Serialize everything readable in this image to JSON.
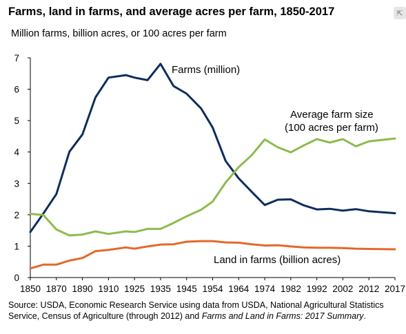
{
  "title": "Farms, land in farms, and average acres per farm, 1850-2017",
  "subtitle": "Million farms, billion acres, or 100 acres per farm",
  "chart_data": {
    "type": "line",
    "ylim": [
      0,
      7
    ],
    "yticks": [
      0,
      1,
      2,
      3,
      4,
      5,
      6,
      7
    ],
    "xlim": [
      1850,
      2017
    ],
    "xtick_labels": [
      "1850",
      "1870",
      "1890",
      "1910",
      "1925",
      "1935",
      "1945",
      "1954",
      "1964",
      "1974",
      "1982",
      "1992",
      "2002",
      "2012",
      "2017"
    ],
    "grid": false,
    "series": [
      {
        "name": "Farms (million)",
        "color": "#0c2d5c",
        "points": [
          [
            1850,
            1.45
          ],
          [
            1860,
            2.04
          ],
          [
            1870,
            2.66
          ],
          [
            1880,
            4.01
          ],
          [
            1890,
            4.56
          ],
          [
            1900,
            5.74
          ],
          [
            1910,
            6.37
          ],
          [
            1920,
            6.45
          ],
          [
            1925,
            6.37
          ],
          [
            1930,
            6.29
          ],
          [
            1935,
            6.81
          ],
          [
            1940,
            6.1
          ],
          [
            1945,
            5.86
          ],
          [
            1950,
            5.39
          ],
          [
            1954,
            4.78
          ],
          [
            1959,
            3.71
          ],
          [
            1964,
            3.16
          ],
          [
            1969,
            2.73
          ],
          [
            1974,
            2.31
          ],
          [
            1978,
            2.48
          ],
          [
            1982,
            2.49
          ],
          [
            1987,
            2.3
          ],
          [
            1992,
            2.17
          ],
          [
            1997,
            2.19
          ],
          [
            2002,
            2.13
          ],
          [
            2007,
            2.18
          ],
          [
            2012,
            2.11
          ],
          [
            2017,
            2.05
          ]
        ]
      },
      {
        "name": "Average farm size (100 acres per farm)",
        "color": "#8dbb4d",
        "points": [
          [
            1850,
            2.03
          ],
          [
            1860,
            1.99
          ],
          [
            1870,
            1.53
          ],
          [
            1880,
            1.34
          ],
          [
            1890,
            1.37
          ],
          [
            1900,
            1.47
          ],
          [
            1910,
            1.39
          ],
          [
            1920,
            1.47
          ],
          [
            1925,
            1.45
          ],
          [
            1930,
            1.55
          ],
          [
            1935,
            1.55
          ],
          [
            1940,
            1.74
          ],
          [
            1945,
            1.95
          ],
          [
            1950,
            2.16
          ],
          [
            1954,
            2.42
          ],
          [
            1959,
            3.03
          ],
          [
            1964,
            3.52
          ],
          [
            1969,
            3.9
          ],
          [
            1974,
            4.4
          ],
          [
            1978,
            4.15
          ],
          [
            1982,
            3.99
          ],
          [
            1987,
            4.21
          ],
          [
            1992,
            4.41
          ],
          [
            1997,
            4.3
          ],
          [
            2002,
            4.41
          ],
          [
            2007,
            4.18
          ],
          [
            2012,
            4.34
          ],
          [
            2017,
            4.43
          ]
        ]
      },
      {
        "name": "Land in farms (billion acres)",
        "color": "#e4682a",
        "points": [
          [
            1850,
            0.29
          ],
          [
            1860,
            0.41
          ],
          [
            1870,
            0.41
          ],
          [
            1880,
            0.54
          ],
          [
            1890,
            0.62
          ],
          [
            1900,
            0.84
          ],
          [
            1910,
            0.88
          ],
          [
            1920,
            0.96
          ],
          [
            1925,
            0.92
          ],
          [
            1930,
            0.99
          ],
          [
            1935,
            1.05
          ],
          [
            1940,
            1.06
          ],
          [
            1945,
            1.14
          ],
          [
            1950,
            1.16
          ],
          [
            1954,
            1.16
          ],
          [
            1959,
            1.12
          ],
          [
            1964,
            1.11
          ],
          [
            1969,
            1.06
          ],
          [
            1974,
            1.02
          ],
          [
            1978,
            1.03
          ],
          [
            1982,
            0.99
          ],
          [
            1987,
            0.96
          ],
          [
            1992,
            0.95
          ],
          [
            1997,
            0.95
          ],
          [
            2002,
            0.94
          ],
          [
            2007,
            0.92
          ],
          [
            2012,
            0.91
          ],
          [
            2017,
            0.9
          ]
        ]
      }
    ],
    "annotations": {
      "farms": "Farms (million)",
      "size_line1": "Average farm size",
      "size_line2": "(100 acres per farm)",
      "land": "Land in farms (billion acres)"
    }
  },
  "source": {
    "part1": "Source: USDA, Economic Research Service using data from USDA, National Agricultural Statistics Service, Census of Agriculture (through 2012) and ",
    "italic": "Farms and Land in Farms: 2017 Summary",
    "part2": "."
  }
}
